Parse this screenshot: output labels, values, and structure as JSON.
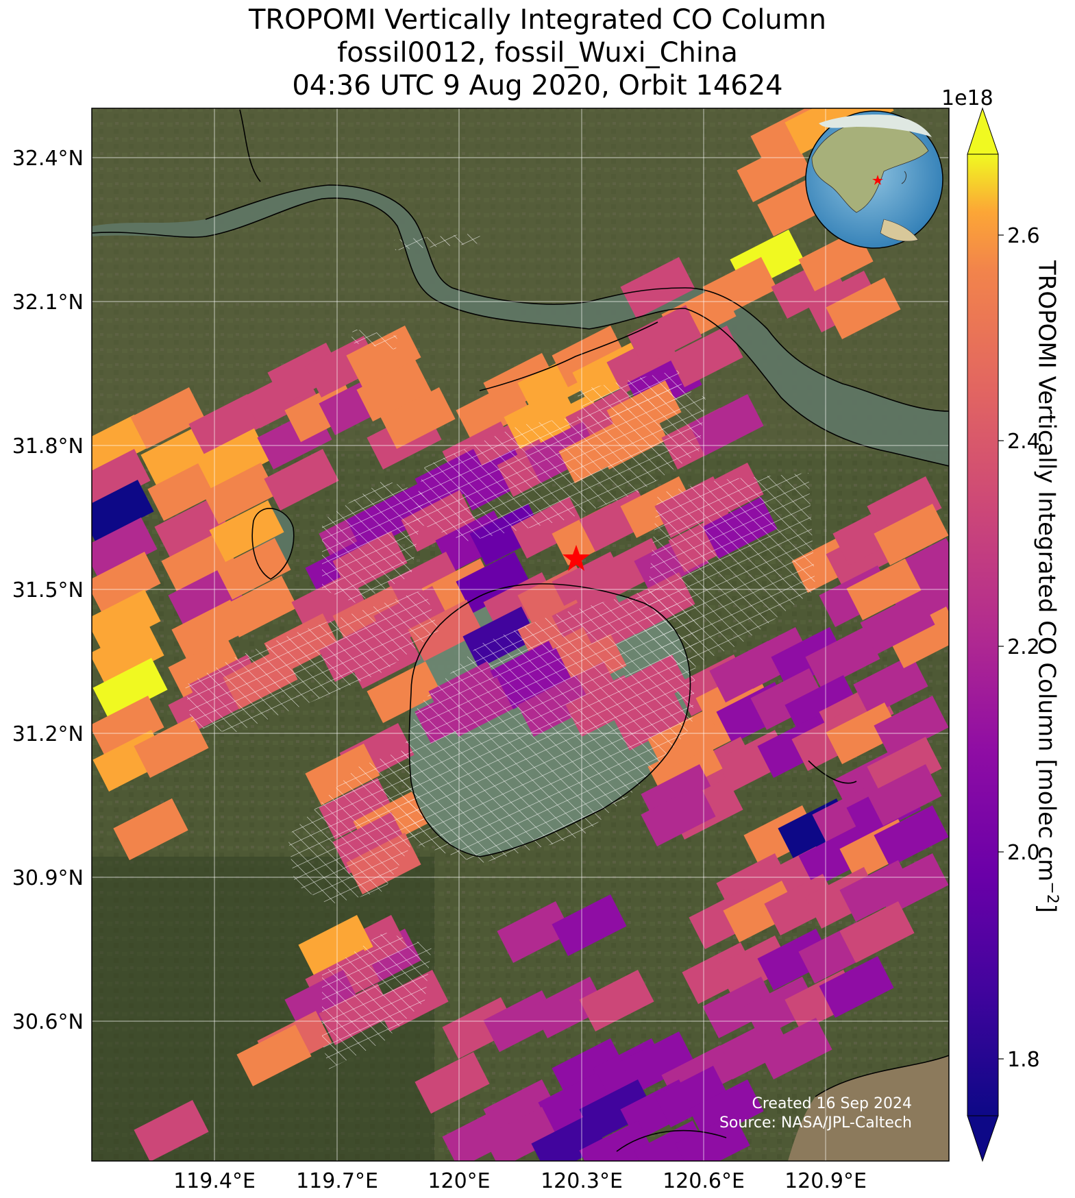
{
  "title": {
    "line1": "TROPOMI Vertically Integrated CO Column",
    "line2": "fossil0012, fossil_Wuxi_China",
    "line3": "04:36 UTC 9 Aug 2020, Orbit 14624"
  },
  "axes": {
    "lat_ticks": [
      "32.4°N",
      "32.1°N",
      "31.8°N",
      "31.5°N",
      "31.2°N",
      "30.9°N",
      "30.6°N"
    ],
    "lon_ticks": [
      "119.4°E",
      "119.7°E",
      "120°E",
      "120.3°E",
      "120.6°E",
      "120.9°E"
    ]
  },
  "colorbar": {
    "label": "TROPOMI Vertically Integrated CO Column [molec cm",
    "label_exp": "−2",
    "label_end": "]",
    "exponent": "1e18",
    "ticks": [
      "2.6",
      "2.4",
      "2.2",
      "2.0",
      "1.8"
    ],
    "colormap": "plasma",
    "range": [
      1.73,
      2.68
    ]
  },
  "site_marker": {
    "symbol": "star",
    "color": "#ff0000"
  },
  "credit": {
    "line1": "Created 16 Sep 2024",
    "line2": "Source: NASA/JPL-Caltech"
  },
  "colors": {
    "water": "#5f7f6e",
    "land": "#4f5a35",
    "grid": "#ffffff",
    "coast": "#000000"
  }
}
